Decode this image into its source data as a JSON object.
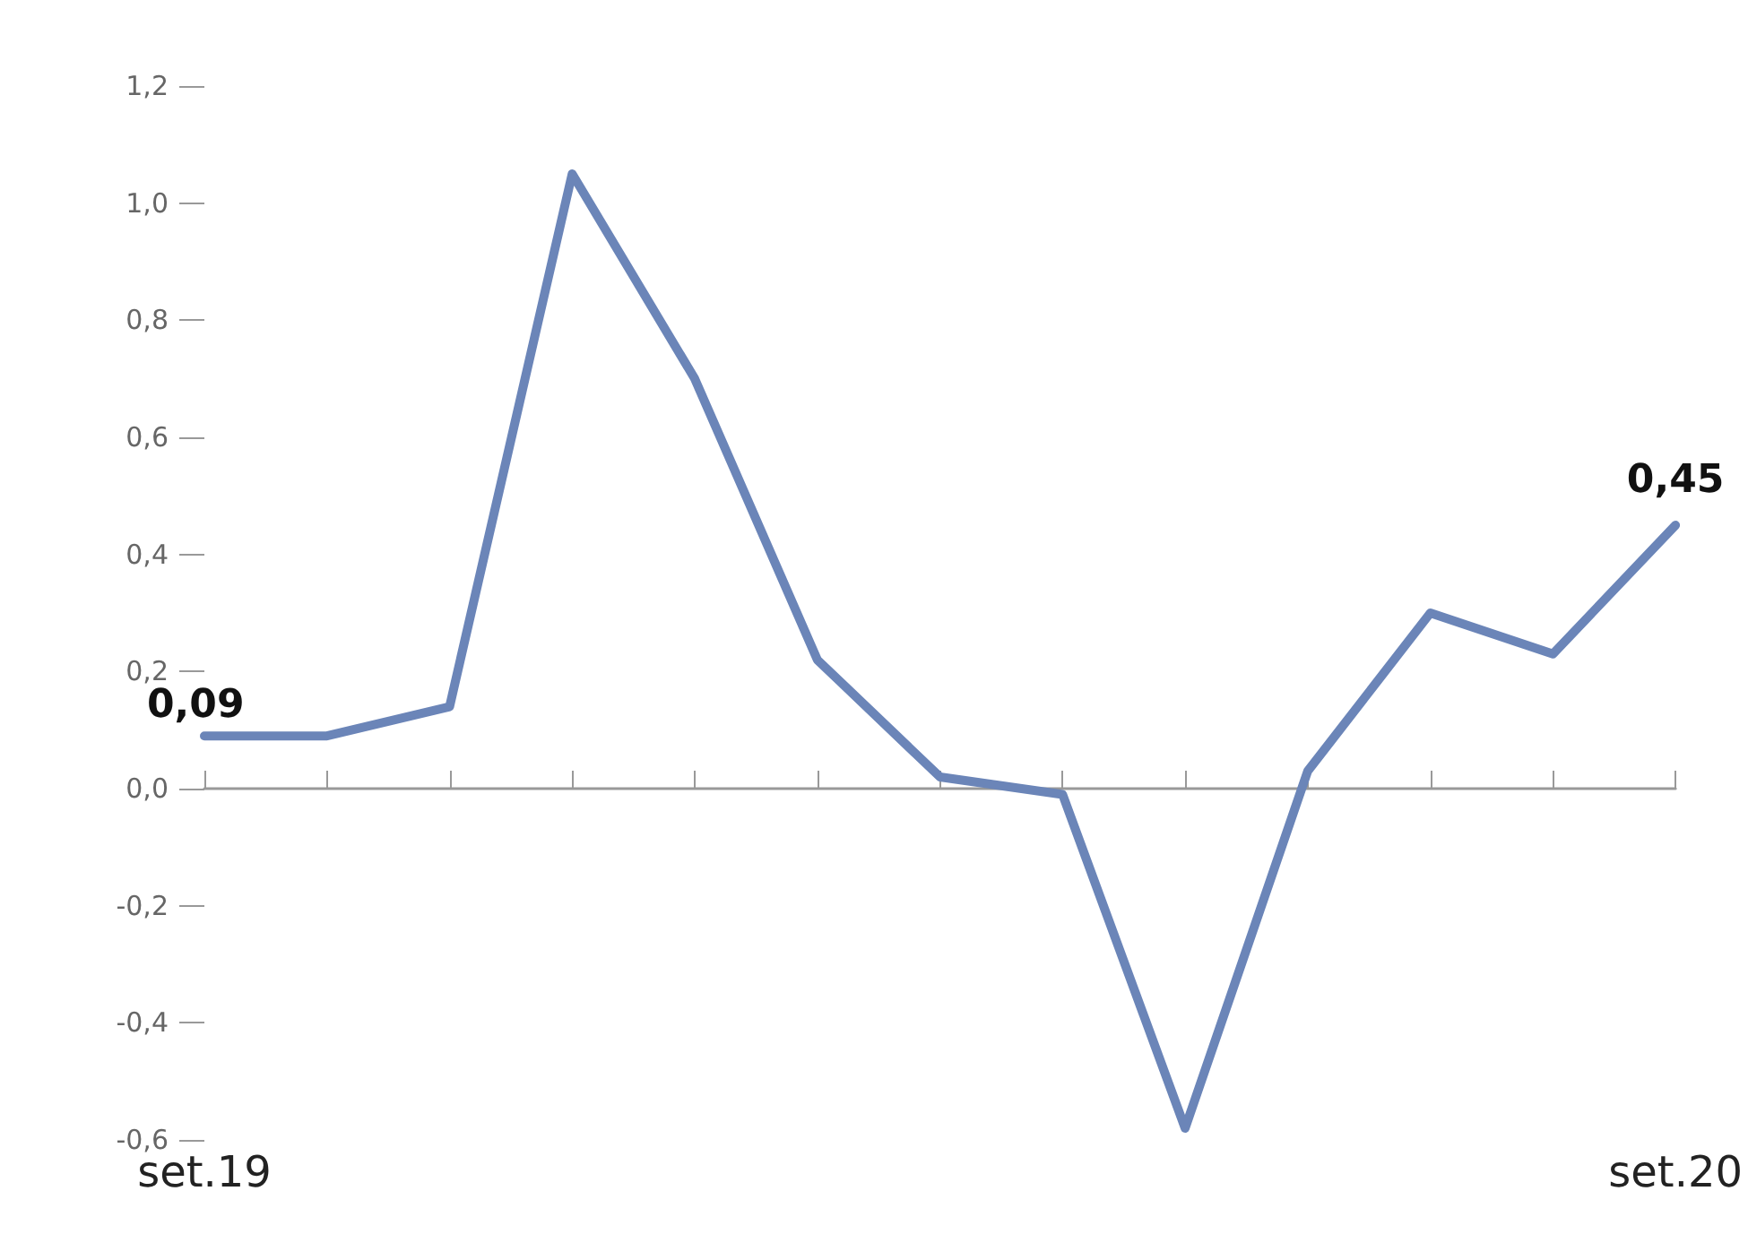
{
  "chart_data": {
    "type": "line",
    "categories": [
      "set.19",
      null,
      null,
      null,
      null,
      null,
      null,
      null,
      null,
      null,
      null,
      null,
      "set.20"
    ],
    "series": [
      {
        "color": "#6b85b8",
        "values": [
          0.09,
          0.09,
          0.14,
          1.05,
          0.7,
          0.22,
          0.02,
          -0.01,
          -0.58,
          0.03,
          0.3,
          0.23,
          0.45
        ],
        "value_labels": [
          "0,09",
          null,
          null,
          null,
          null,
          null,
          null,
          null,
          null,
          null,
          null,
          null,
          "0,45"
        ]
      }
    ],
    "ylim": [
      -0.6,
      1.2
    ],
    "yticks": [
      {
        "value": -0.6,
        "label": "-0,6"
      },
      {
        "value": -0.4,
        "label": "-0,4"
      },
      {
        "value": -0.2,
        "label": "-0,2"
      },
      {
        "value": 0,
        "label": "0,0"
      },
      {
        "value": 0.2,
        "label": "0,2"
      },
      {
        "value": 0.4,
        "label": "0,4"
      },
      {
        "value": 0.6,
        "label": "0,6"
      },
      {
        "value": 0.8,
        "label": "0,8"
      },
      {
        "value": 1.0,
        "label": "1,0"
      },
      {
        "value": 1.2,
        "label": "1,2"
      }
    ],
    "marker": "none",
    "line_style": "solid"
  }
}
